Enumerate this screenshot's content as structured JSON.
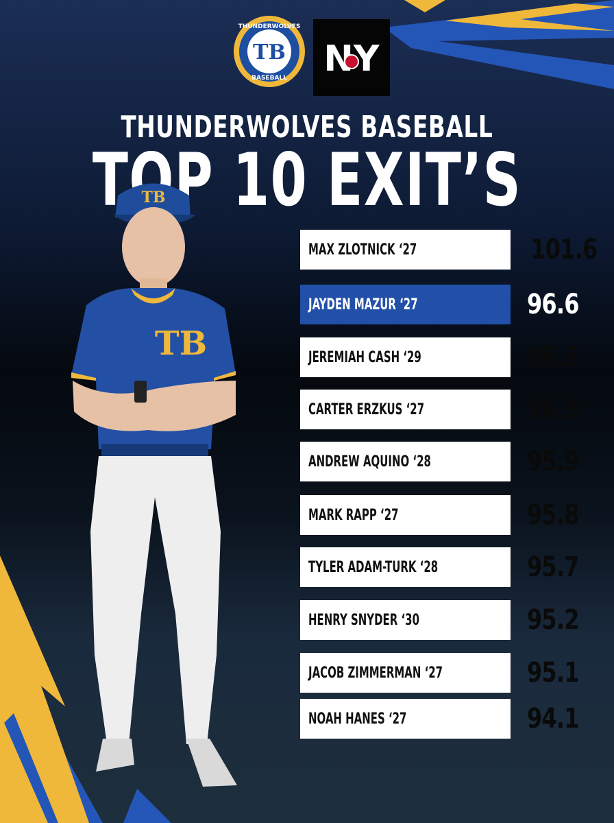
{
  "logos": {
    "left_ring_text": "THUNDERWOLVES",
    "left_monogram": "TB",
    "left_bottom_text": "BASEBALL",
    "right_monogram": "NY"
  },
  "heading": {
    "line1": "THUNDERWOLVES BASEBALL",
    "line2": "TOP 10 EXIT’S"
  },
  "jersey_monogram": "TB",
  "leaderboard": [
    {
      "name": "MAX ZLOTNICK ‘27",
      "value": "101.6",
      "highlight": false
    },
    {
      "name": "JAYDEN MAZUR ‘27",
      "value": "96.6",
      "highlight": true
    },
    {
      "name": "JEREMIAH CASH ‘29",
      "value": "96.5",
      "highlight": false
    },
    {
      "name": "CARTER ERZKUS ‘27",
      "value": "96.3",
      "highlight": false
    },
    {
      "name": "ANDREW AQUINO ‘28",
      "value": "95.9",
      "highlight": false
    },
    {
      "name": "MARK RAPP ‘27",
      "value": "95.8",
      "highlight": false
    },
    {
      "name": "TYLER ADAM-TURK ‘28",
      "value": "95.7",
      "highlight": false
    },
    {
      "name": "HENRY SNYDER ‘30",
      "value": "95.2",
      "highlight": false
    },
    {
      "name": "JACOB ZIMMERMAN ‘27",
      "value": "95.1",
      "highlight": false
    },
    {
      "name": "NOAH HANES ‘27",
      "value": "94.1",
      "highlight": false
    }
  ],
  "colors": {
    "brand_blue": "#2250a8",
    "brand_gold": "#f0b83a",
    "row_bg": "#ffffff"
  }
}
